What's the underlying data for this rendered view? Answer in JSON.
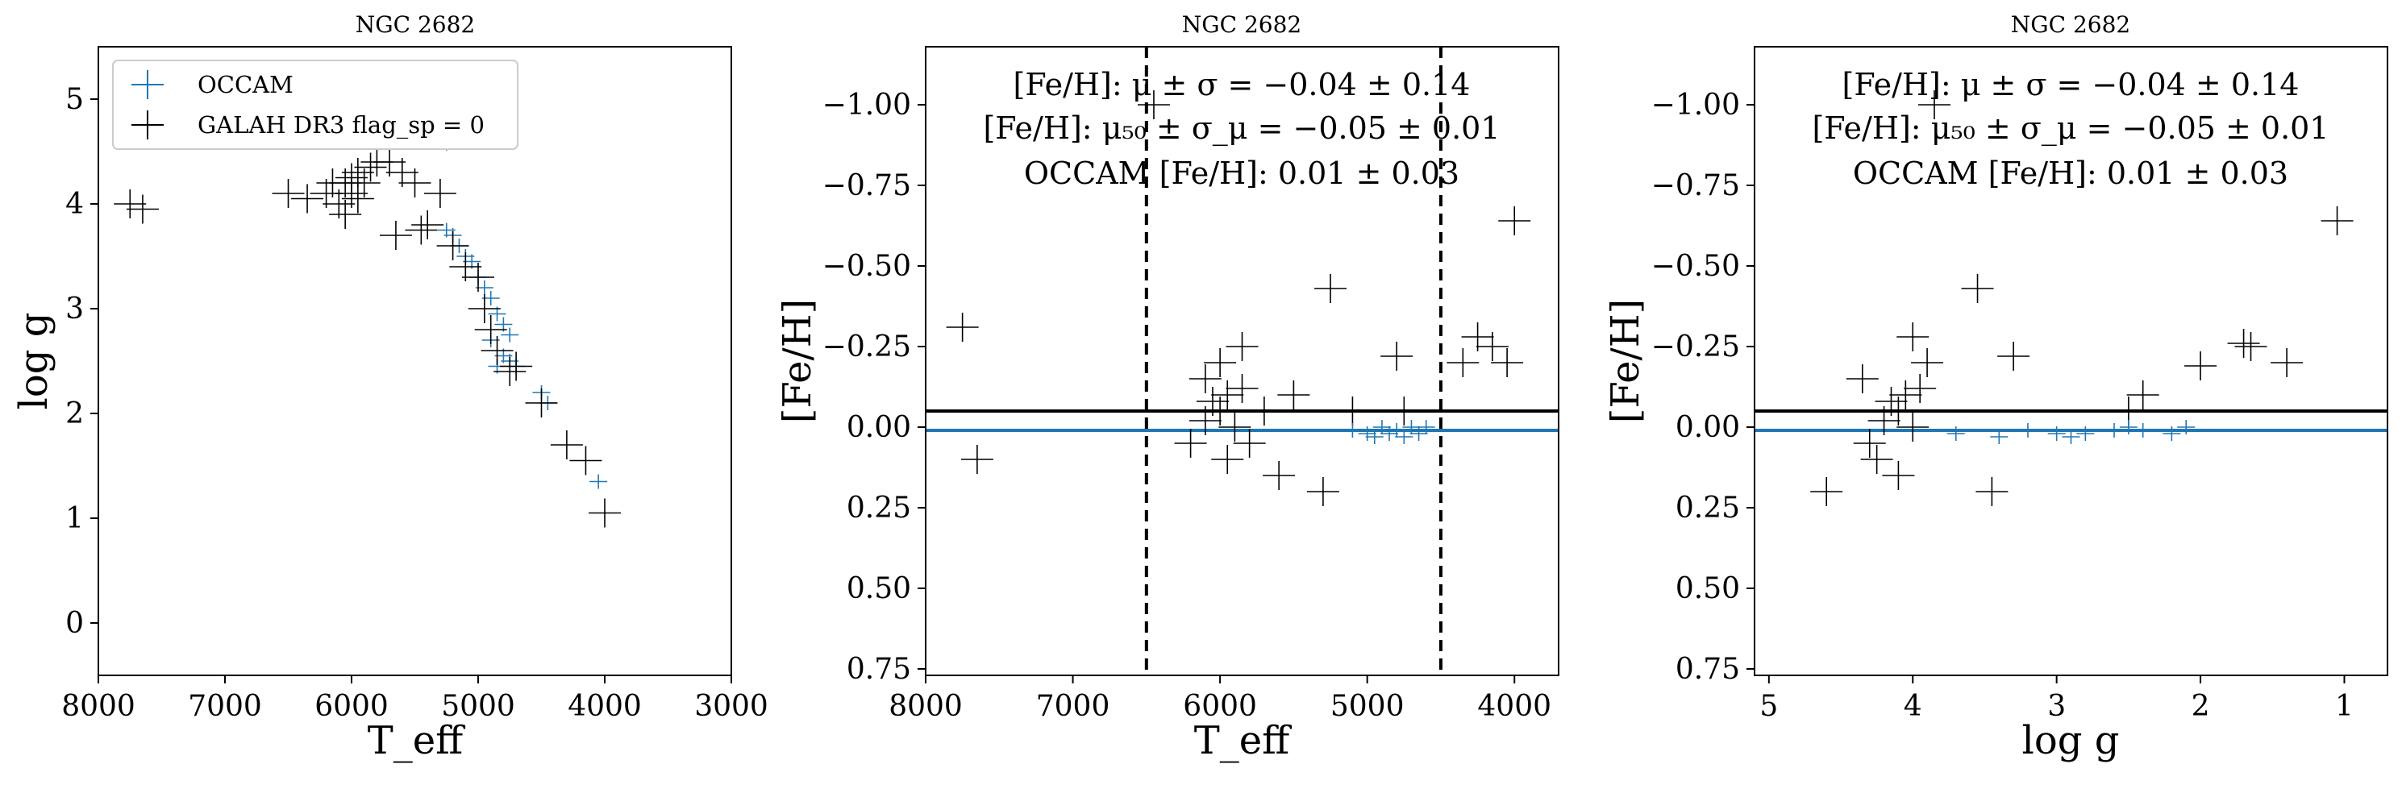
{
  "figure_title": "NGC 2682",
  "colors": {
    "occam": "#1f77b4",
    "galah": "#000000",
    "band": "#a6cbe6"
  },
  "legend": {
    "occam_label": "OCCAM",
    "galah_label": "GALAH DR3 flag_sp = 0"
  },
  "stats": {
    "mean_text": "[Fe/H]: μ ± σ = −0.04 ± 0.14",
    "median_text": "[Fe/H]: μ₅₀ ± σ_μ = −0.05 ± 0.01",
    "occam_text": "OCCAM [Fe/H]: 0.01 ± 0.03",
    "galah_median": -0.05,
    "occam_feh": 0.01,
    "occam_err": 0.03
  },
  "chart_data": [
    {
      "type": "scatter",
      "title": "NGC 2682",
      "xlabel": "T_eff",
      "ylabel": "log g",
      "xlim": [
        8000,
        3000
      ],
      "ylim": [
        5.5,
        -0.5
      ],
      "xticks": [
        "8000",
        "7000",
        "6000",
        "5000",
        "4000",
        "3000"
      ],
      "xtick_values": [
        8000,
        7000,
        6000,
        5000,
        4000,
        3000
      ],
      "yticks": [
        "0",
        "1",
        "2",
        "3",
        "4",
        "5"
      ],
      "ytick_values": [
        0,
        1,
        2,
        3,
        4,
        5
      ],
      "legend_position": "top-left",
      "series": [
        {
          "name": "OCCAM",
          "points": [
            [
              4050,
              1.35
            ],
            [
              4450,
              2.1
            ],
            [
              4500,
              2.2
            ],
            [
              4700,
              2.45
            ],
            [
              4750,
              2.5
            ],
            [
              4800,
              2.55
            ],
            [
              4750,
              2.75
            ],
            [
              4800,
              2.85
            ],
            [
              4850,
              2.95
            ],
            [
              4900,
              3.1
            ],
            [
              4950,
              3.2
            ],
            [
              5000,
              3.3
            ],
            [
              5050,
              3.45
            ],
            [
              5100,
              3.5
            ],
            [
              5150,
              3.6
            ],
            [
              5200,
              3.7
            ],
            [
              5250,
              3.75
            ],
            [
              4850,
              2.45
            ],
            [
              4900,
              2.7
            ]
          ]
        },
        {
          "name": "GALAH DR3 flag_sp = 0",
          "points": [
            [
              7750,
              4.0
            ],
            [
              7650,
              3.95
            ],
            [
              6500,
              4.1
            ],
            [
              6350,
              4.05
            ],
            [
              6200,
              4.1
            ],
            [
              6100,
              4.0
            ],
            [
              6050,
              4.2
            ],
            [
              6000,
              4.1
            ],
            [
              5950,
              4.3
            ],
            [
              5900,
              4.2
            ],
            [
              5850,
              4.35
            ],
            [
              5800,
              4.4
            ],
            [
              5700,
              4.4
            ],
            [
              5600,
              4.3
            ],
            [
              5500,
              4.2
            ],
            [
              5400,
              3.8
            ],
            [
              5300,
              4.1
            ],
            [
              5250,
              4.65
            ],
            [
              5200,
              3.6
            ],
            [
              5100,
              3.4
            ],
            [
              5000,
              3.3
            ],
            [
              4950,
              3.0
            ],
            [
              4900,
              2.8
            ],
            [
              4850,
              2.6
            ],
            [
              4750,
              2.4
            ],
            [
              4700,
              2.45
            ],
            [
              4500,
              2.1
            ],
            [
              4300,
              1.7
            ],
            [
              4150,
              1.55
            ],
            [
              4000,
              1.05
            ],
            [
              6050,
              3.9
            ],
            [
              6150,
              4.2
            ],
            [
              5950,
              4.05
            ],
            [
              6000,
              4.25
            ],
            [
              5650,
              3.7
            ],
            [
              5450,
              3.75
            ]
          ]
        }
      ]
    },
    {
      "type": "scatter",
      "title": "NGC 2682",
      "xlabel": "T_eff",
      "ylabel": "[Fe/H]",
      "xlim": [
        8000,
        3700
      ],
      "ylim": [
        -1.18,
        0.77
      ],
      "xticks": [
        "8000",
        "7000",
        "6000",
        "5000",
        "4000"
      ],
      "xtick_values": [
        8000,
        7000,
        6000,
        5000,
        4000
      ],
      "yticks": [
        "0.75",
        "0.50",
        "0.25",
        "0.00",
        "−0.25",
        "−0.50",
        "−0.75",
        "−1.00"
      ],
      "ytick_values": [
        0.75,
        0.5,
        0.25,
        0.0,
        -0.25,
        -0.5,
        -0.75,
        -1.0
      ],
      "vlines": [
        6500,
        4500
      ],
      "series": [
        {
          "name": "GALAH DR3 flag_sp = 0",
          "points": [
            [
              7750,
              -0.31
            ],
            [
              7650,
              0.1
            ],
            [
              6450,
              -1.0
            ],
            [
              6200,
              0.05
            ],
            [
              6100,
              -0.02
            ],
            [
              6050,
              -0.08
            ],
            [
              6000,
              -0.05
            ],
            [
              5950,
              -0.1
            ],
            [
              5900,
              0.0
            ],
            [
              5850,
              -0.12
            ],
            [
              5800,
              0.05
            ],
            [
              5700,
              -0.05
            ],
            [
              5600,
              0.15
            ],
            [
              5500,
              -0.1
            ],
            [
              5300,
              0.2
            ],
            [
              5250,
              -0.43
            ],
            [
              5100,
              -0.05
            ],
            [
              4800,
              -0.22
            ],
            [
              4750,
              -0.05
            ],
            [
              4350,
              -0.2
            ],
            [
              4250,
              -0.28
            ],
            [
              4150,
              -0.25
            ],
            [
              4050,
              -0.2
            ],
            [
              4000,
              -0.64
            ],
            [
              6000,
              -0.2
            ],
            [
              5950,
              0.1
            ],
            [
              6100,
              -0.15
            ],
            [
              5850,
              -0.25
            ]
          ]
        },
        {
          "name": "OCCAM",
          "points": [
            [
              5100,
              0.01
            ],
            [
              5000,
              0.02
            ],
            [
              4950,
              0.03
            ],
            [
              4900,
              0.0
            ],
            [
              4850,
              0.02
            ],
            [
              4800,
              0.01
            ],
            [
              4750,
              0.03
            ],
            [
              4700,
              0.0
            ],
            [
              4650,
              0.02
            ],
            [
              4600,
              0.0
            ]
          ]
        }
      ]
    },
    {
      "type": "scatter",
      "title": "NGC 2682",
      "xlabel": "log g",
      "ylabel": "[Fe/H]",
      "xlim": [
        5.1,
        0.7
      ],
      "ylim": [
        -1.18,
        0.77
      ],
      "xticks": [
        "5",
        "4",
        "3",
        "2",
        "1"
      ],
      "xtick_values": [
        5,
        4,
        3,
        2,
        1
      ],
      "yticks": [
        "0.75",
        "0.50",
        "0.25",
        "0.00",
        "−0.25",
        "−0.50",
        "−0.75",
        "−1.00"
      ],
      "ytick_values": [
        0.75,
        0.5,
        0.25,
        0.0,
        -0.25,
        -0.5,
        -0.75,
        -1.0
      ],
      "series": [
        {
          "name": "GALAH DR3 flag_sp = 0",
          "points": [
            [
              4.3,
              0.05
            ],
            [
              4.2,
              -0.02
            ],
            [
              4.15,
              -0.08
            ],
            [
              4.1,
              -0.05
            ],
            [
              4.05,
              -0.1
            ],
            [
              4.0,
              0.0
            ],
            [
              3.95,
              -0.12
            ],
            [
              4.25,
              0.1
            ],
            [
              4.35,
              -0.15
            ],
            [
              3.9,
              -0.2
            ],
            [
              4.1,
              0.15
            ],
            [
              3.85,
              -1.0
            ],
            [
              3.55,
              -0.43
            ],
            [
              3.3,
              -0.22
            ],
            [
              3.45,
              0.2
            ],
            [
              2.5,
              -0.05
            ],
            [
              2.4,
              -0.1
            ],
            [
              2.0,
              -0.19
            ],
            [
              1.7,
              -0.26
            ],
            [
              1.65,
              -0.25
            ],
            [
              1.4,
              -0.2
            ],
            [
              1.05,
              -0.64
            ],
            [
              4.6,
              0.2
            ],
            [
              4.0,
              -0.28
            ]
          ]
        },
        {
          "name": "OCCAM",
          "points": [
            [
              3.7,
              0.02
            ],
            [
              3.4,
              0.03
            ],
            [
              3.2,
              0.01
            ],
            [
              3.0,
              0.02
            ],
            [
              2.9,
              0.03
            ],
            [
              2.8,
              0.02
            ],
            [
              2.6,
              0.01
            ],
            [
              2.5,
              0.0
            ],
            [
              2.4,
              0.01
            ],
            [
              2.2,
              0.02
            ],
            [
              2.1,
              0.0
            ]
          ]
        }
      ]
    }
  ]
}
